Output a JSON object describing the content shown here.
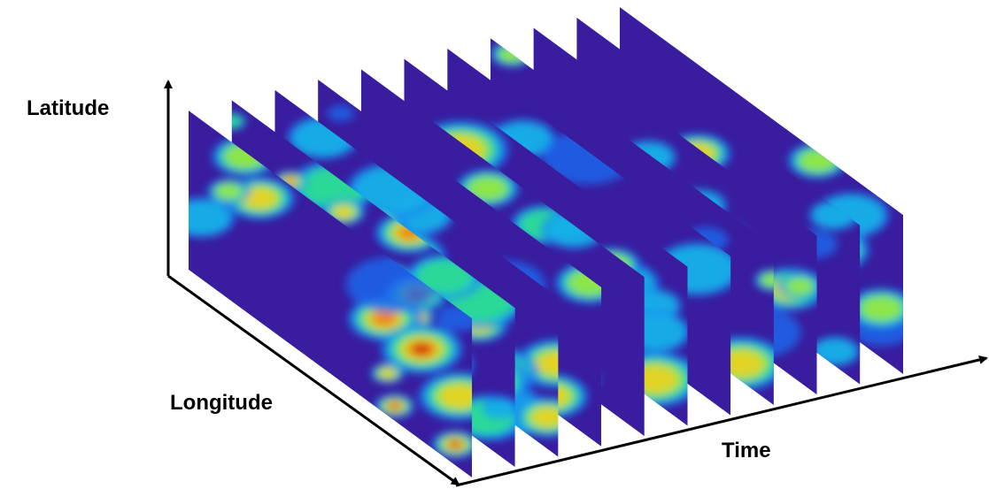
{
  "axes": {
    "latitude": "Latitude",
    "longitude": "Longitude",
    "time": "Time"
  }
}
